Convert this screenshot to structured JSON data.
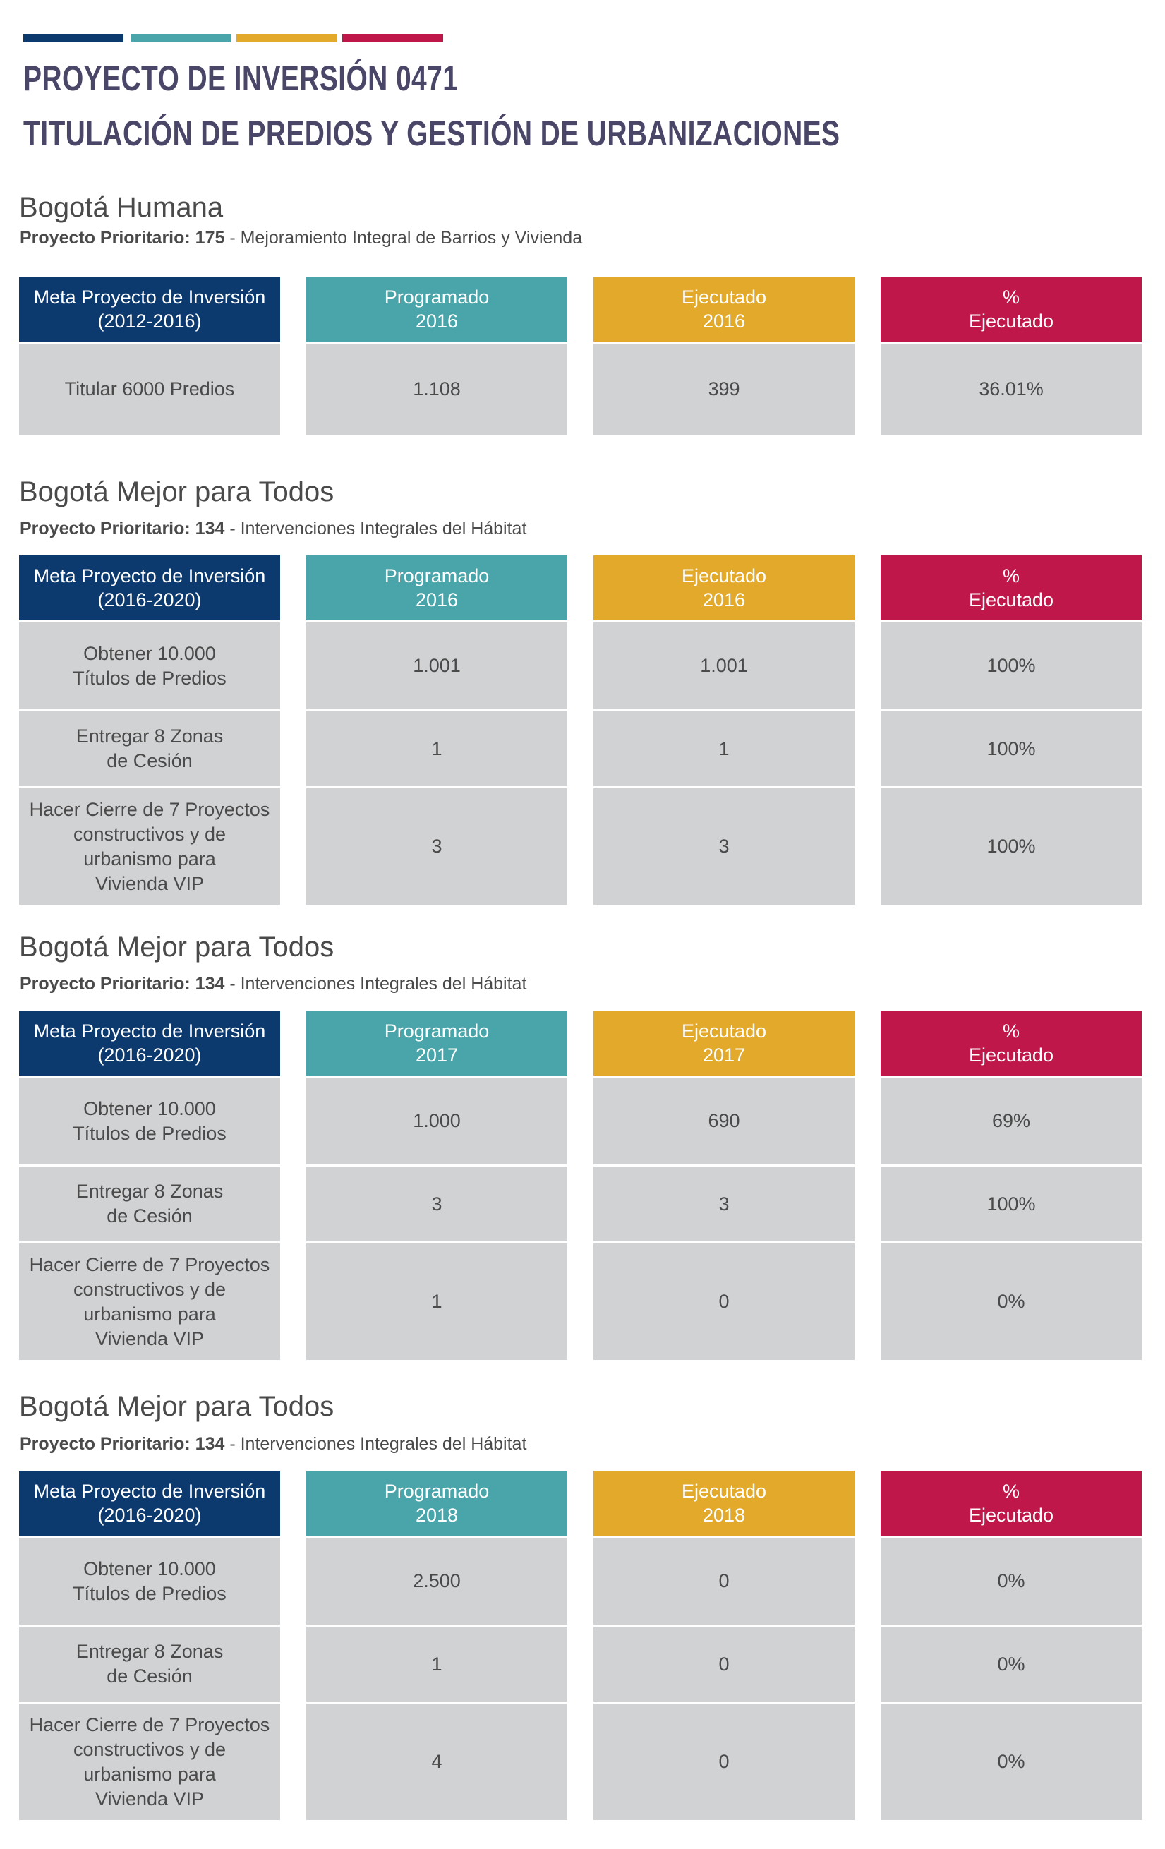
{
  "title": {
    "line1": "PROYECTO DE INVERSIÓN 0471",
    "line2": "TITULACIÓN DE PREDIOS Y GESTIÓN DE URBANIZACIONES"
  },
  "sections": [
    {
      "title": "Bogotá Humana",
      "subtitle_bold": "Proyecto Prioritario: 175",
      "subtitle_rest": " - Mejoramiento Integral de Barrios y Vivienda",
      "headers": [
        "Meta Proyecto de Inversión\n(2012-2016)",
        "Programado\n2016",
        "Ejecutado\n2016",
        "%\nEjecutado"
      ],
      "rows": [
        [
          "Titular 6000 Predios",
          "1.108",
          "399",
          "36.01%"
        ]
      ]
    },
    {
      "title": "Bogotá Mejor para Todos",
      "subtitle_bold": "Proyecto Prioritario: 134",
      "subtitle_rest": " - Intervenciones Integrales del Hábitat",
      "headers": [
        "Meta Proyecto de Inversión\n(2016-2020)",
        "Programado\n2016",
        "Ejecutado\n2016",
        "%\nEjecutado"
      ],
      "rows": [
        [
          "Obtener 10.000\nTítulos de Predios",
          "1.001",
          "1.001",
          "100%"
        ],
        [
          "Entregar 8 Zonas\nde Cesión",
          "1",
          "1",
          "100%"
        ],
        [
          "Hacer Cierre de 7 Proyectos\nconstructivos  y de\nurbanismo para\nVivienda VIP",
          "3",
          "3",
          "100%"
        ]
      ]
    },
    {
      "title": "Bogotá Mejor para Todos",
      "subtitle_bold": "Proyecto Prioritario: 134",
      "subtitle_rest": " - Intervenciones Integrales del Hábitat",
      "headers": [
        "Meta Proyecto de Inversión\n(2016-2020)",
        "Programado\n2017",
        "Ejecutado\n2017",
        "%\nEjecutado"
      ],
      "rows": [
        [
          "Obtener 10.000\nTítulos de Predios",
          "1.000",
          "690",
          "69%"
        ],
        [
          "Entregar 8 Zonas\nde Cesión",
          "3",
          "3",
          "100%"
        ],
        [
          "Hacer Cierre de 7 Proyectos\nconstructivos  y de\nurbanismo para\nVivienda VIP",
          "1",
          "0",
          "0%"
        ]
      ]
    },
    {
      "title": "Bogotá Mejor para Todos",
      "subtitle_bold": "Proyecto Prioritario: 134",
      "subtitle_rest": " - Intervenciones Integrales del Hábitat",
      "headers": [
        "Meta Proyecto de Inversión\n(2016-2020)",
        "Programado\n2018",
        "Ejecutado\n2018",
        "%\nEjecutado"
      ],
      "rows": [
        [
          "Obtener 10.000\nTítulos de Predios",
          "2.500",
          "0",
          "0%"
        ],
        [
          "Entregar 8 Zonas\nde Cesión",
          "1",
          "0",
          "0%"
        ],
        [
          "Hacer Cierre de 7 Proyectos\nconstructivos  y de\nurbanismo para\nVivienda VIP",
          "4",
          "0",
          "0%"
        ]
      ]
    }
  ],
  "colors": {
    "navy": "#0d3a6e",
    "teal": "#4aa5ab",
    "yellow": "#e2a92a",
    "magenta": "#c0174a",
    "cell_gray": "#d1d2d4",
    "title_purple": "#4a4668"
  }
}
